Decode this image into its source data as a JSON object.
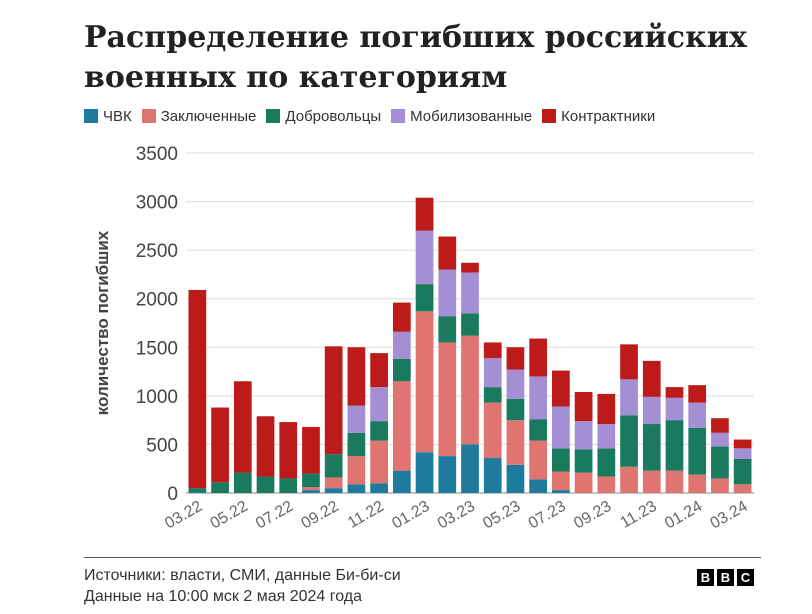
{
  "title": "Распределение погибших российских военных по категориям",
  "footer": {
    "source": "Источники: власти, СМИ, данные Би-би-си",
    "date": "Данные на 10:00 мск 2 мая 2024 года"
  },
  "logo": [
    "B",
    "B",
    "C"
  ],
  "chart_data": {
    "type": "bar",
    "stacked": true,
    "ylabel": "количество погибших",
    "ylim": [
      0,
      3500
    ],
    "yticks": [
      0,
      500,
      1000,
      1500,
      2000,
      2500,
      3000,
      3500
    ],
    "grid": "horizontal",
    "legend_position": "top",
    "x_tick_labels": [
      "03.22",
      "05.22",
      "07.22",
      "09.22",
      "11.22",
      "01.23",
      "03.23",
      "05.23",
      "07.23",
      "09.23",
      "11.23",
      "01.24",
      "03.24"
    ],
    "categories": [
      "03.22",
      "04.22",
      "05.22",
      "06.22",
      "07.22",
      "08.22",
      "09.22",
      "10.22",
      "11.22",
      "12.22",
      "01.23",
      "02.23",
      "03.23",
      "04.23",
      "05.23",
      "06.23",
      "07.23",
      "08.23",
      "09.23",
      "10.23",
      "11.23",
      "12.23",
      "01.24",
      "02.24",
      "03.24"
    ],
    "series": [
      {
        "name": "ЧВК",
        "color": "#1e7b9e",
        "values": [
          10,
          0,
          0,
          0,
          0,
          30,
          50,
          90,
          100,
          230,
          420,
          380,
          500,
          360,
          290,
          140,
          30,
          0,
          0,
          0,
          0,
          0,
          0,
          0,
          0
        ]
      },
      {
        "name": "Заключенные",
        "color": "#e07471",
        "values": [
          0,
          0,
          0,
          0,
          0,
          30,
          110,
          290,
          440,
          920,
          1450,
          1170,
          1120,
          570,
          460,
          400,
          190,
          210,
          170,
          270,
          230,
          230,
          190,
          150,
          90
        ]
      },
      {
        "name": "Добровольцы",
        "color": "#1a7a5e",
        "values": [
          40,
          110,
          210,
          170,
          150,
          140,
          240,
          240,
          200,
          230,
          280,
          270,
          230,
          160,
          220,
          220,
          240,
          240,
          290,
          530,
          480,
          520,
          480,
          330,
          260
        ]
      },
      {
        "name": "Мобилизованные",
        "color": "#a58fd4",
        "values": [
          0,
          0,
          0,
          0,
          0,
          0,
          0,
          280,
          350,
          280,
          550,
          480,
          420,
          300,
          300,
          440,
          430,
          290,
          250,
          370,
          280,
          230,
          260,
          140,
          110
        ]
      },
      {
        "name": "Контрактники",
        "color": "#bd1a1a",
        "values": [
          2040,
          770,
          940,
          620,
          580,
          480,
          1110,
          600,
          350,
          300,
          340,
          340,
          100,
          160,
          230,
          390,
          370,
          300,
          310,
          360,
          370,
          110,
          180,
          150,
          90
        ]
      }
    ]
  }
}
